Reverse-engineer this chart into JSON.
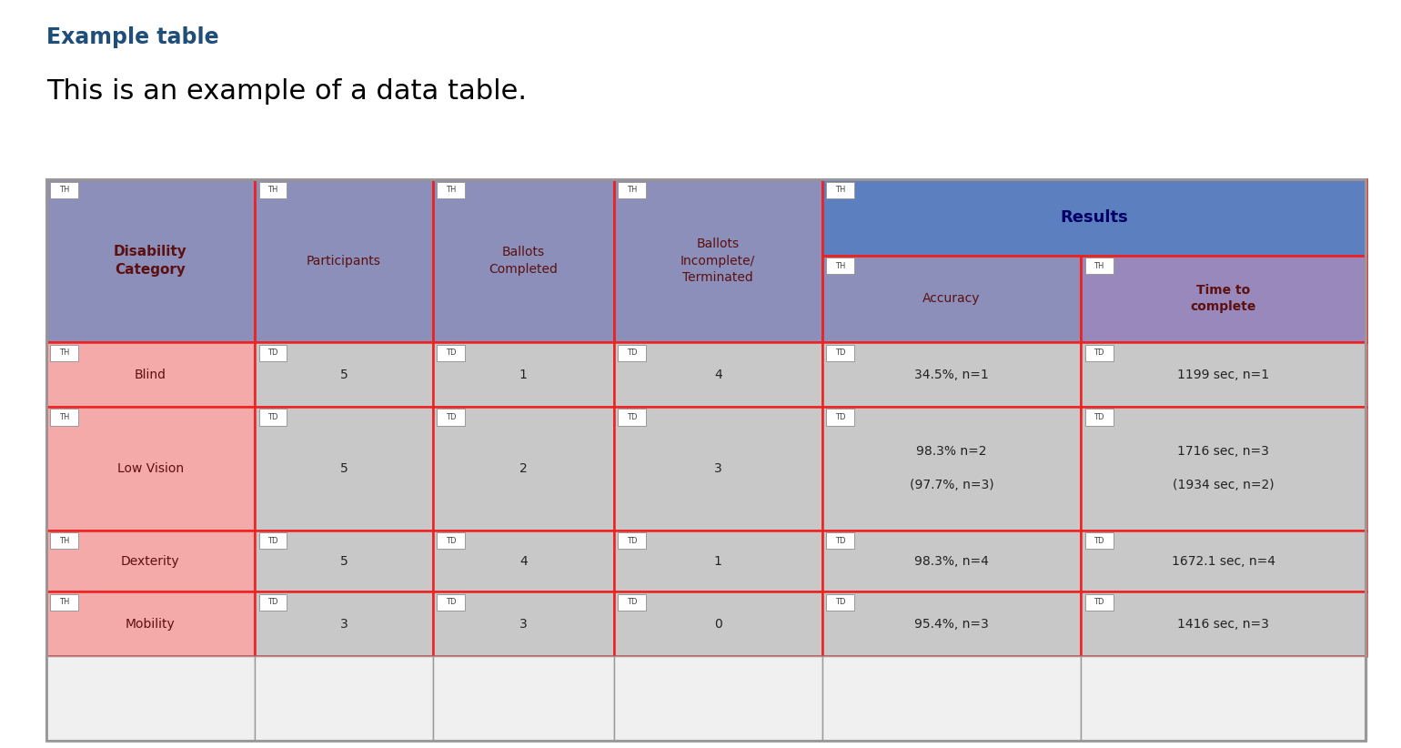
{
  "title": "Example table",
  "subtitle": "This is an example of a data table.",
  "title_color": "#1F4E79",
  "subtitle_color": "#000000",
  "bg_color": "#FFFFFF",
  "col_props": [
    0.158,
    0.135,
    0.137,
    0.158,
    0.196,
    0.216
  ],
  "row_props": [
    0.135,
    0.155,
    0.115,
    0.22,
    0.11,
    0.115,
    0.15
  ],
  "header_span_bg": "#8B8FBA",
  "results_bg": "#5B7FBF",
  "accuracy_bg": "#8B8FBA",
  "time_bg": "#9988BB",
  "data_pink_bg": "#F5AAAA",
  "data_gray_bg": "#C8C8C8",
  "header_bottom_bg": "#7878AA",
  "red_border": "#EE2222",
  "gray_border": "#999999",
  "header_text_color": "#5C1010",
  "results_text_color": "#000066",
  "data_text_color": "#222222",
  "tag_text_color": "#444444",
  "headers_row1": [
    {
      "text": "Disability",
      "tag": "TH",
      "bold": true
    },
    {
      "text": "Participants",
      "tag": "TH",
      "bold": false
    },
    {
      "text": "Ballots",
      "tag": "TH",
      "bold": false
    },
    {
      "text": "Ballots\nIncomplete/",
      "tag": "TH",
      "bold": false
    },
    {
      "text": "Results",
      "tag": "TH",
      "bold": true,
      "span2": true
    }
  ],
  "headers_row2": [
    {
      "text": "tegory",
      "tag": "TD",
      "col0": true
    },
    {
      "text": "",
      "tag": "TD"
    },
    {
      "text": "ompleted",
      "tag": "TD"
    },
    {
      "text": "Terminated",
      "tag": "TD"
    },
    {
      "text": "Accuracy",
      "tag": "TH"
    },
    {
      "text": "Time to\ncomplete",
      "tag": "TH",
      "bold": true
    }
  ],
  "data_rows": [
    {
      "cells": [
        {
          "text": "Blind",
          "tag": "TH"
        },
        {
          "text": "5",
          "tag": "TD"
        },
        {
          "text": "1",
          "tag": "TD"
        },
        {
          "text": "4",
          "tag": "TD"
        },
        {
          "text": "34.5%, n=1",
          "tag": "TD"
        },
        {
          "text": "1199 sec, n=1",
          "tag": "TD"
        }
      ]
    },
    {
      "cells": [
        {
          "text": "Low Vision",
          "tag": "TH"
        },
        {
          "text": "5",
          "tag": "TD"
        },
        {
          "text": "2",
          "tag": "TD"
        },
        {
          "text": "3",
          "tag": "TD"
        },
        {
          "text": "98.3% n=2\n\n(97.7%, n=3)",
          "tag": "TD"
        },
        {
          "text": "1716 sec, n=3\n\n(1934 sec, n=2)",
          "tag": "TD"
        }
      ]
    },
    {
      "cells": [
        {
          "text": "Dexterity",
          "tag": "TH"
        },
        {
          "text": "5",
          "tag": "TD"
        },
        {
          "text": "4",
          "tag": "TD"
        },
        {
          "text": "1",
          "tag": "TD"
        },
        {
          "text": "98.3%, n=4",
          "tag": "TD"
        },
        {
          "text": "1672.1 sec, n=4",
          "tag": "TD"
        }
      ]
    },
    {
      "cells": [
        {
          "text": "Mobility",
          "tag": "TH"
        },
        {
          "text": "3",
          "tag": "TD"
        },
        {
          "text": "3",
          "tag": "TD"
        },
        {
          "text": "0",
          "tag": "TD"
        },
        {
          "text": "95.4%, n=3",
          "tag": "TD"
        },
        {
          "text": "1416 sec, n=3",
          "tag": "TD"
        }
      ]
    }
  ]
}
